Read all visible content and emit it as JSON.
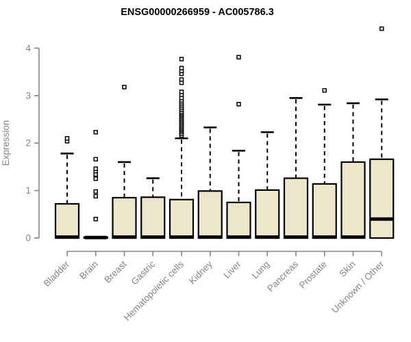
{
  "chart_data": {
    "type": "boxplot",
    "title": "ENSG00000266959 - AC005786.3",
    "ylabel": "Expression",
    "xlabel": "",
    "ylim": [
      0,
      4.45
    ],
    "yticks": [
      0,
      1,
      2,
      3,
      4
    ],
    "grid": false,
    "legend": "none",
    "x_tick_rotation": 45,
    "box_fill_color": "#ece7ca",
    "box_border_color": "#000000",
    "axis_color": "#848484",
    "categories": [
      "Bladder",
      "Brain",
      "Breast",
      "Gastric",
      "Hematopoietic cells",
      "Kidney",
      "Liver",
      "Lung",
      "Pancreas",
      "Prostate",
      "Skin",
      "Unknown / Other"
    ],
    "series": [
      {
        "label": "Bladder",
        "q1": 0,
        "median": 0.02,
        "q3": 0.72,
        "whisker_low": 0,
        "whisker_high": 1.78,
        "outliers": [
          2.04,
          2.1
        ]
      },
      {
        "label": "Brain",
        "q1": 0,
        "median": 0.01,
        "q3": 0.02,
        "whisker_low": 0,
        "whisker_high": 0.02,
        "outliers": [
          0.4,
          0.88,
          0.98,
          1.25,
          1.34,
          1.41,
          1.46,
          1.66,
          2.23
        ]
      },
      {
        "label": "Breast",
        "q1": 0,
        "median": 0.02,
        "q3": 0.85,
        "whisker_low": 0,
        "whisker_high": 1.6,
        "outliers": [
          3.18
        ]
      },
      {
        "label": "Gastric",
        "q1": 0,
        "median": 0.02,
        "q3": 0.86,
        "whisker_low": 0,
        "whisker_high": 1.26,
        "outliers": []
      },
      {
        "label": "Hematopoietic cells",
        "q1": 0,
        "median": 0.02,
        "q3": 0.81,
        "whisker_low": 0,
        "whisker_high": 2.1,
        "outliers": [
          2.16,
          2.2,
          2.24,
          2.27,
          2.3,
          2.33,
          2.36,
          2.39,
          2.42,
          2.45,
          2.48,
          2.51,
          2.54,
          2.57,
          2.6,
          2.63,
          2.66,
          2.7,
          2.74,
          2.78,
          2.82,
          2.86,
          2.9,
          2.95,
          3.02,
          3.08,
          3.27,
          3.34,
          3.46,
          3.52,
          3.58,
          3.77
        ]
      },
      {
        "label": "Kidney",
        "q1": 0,
        "median": 0.02,
        "q3": 0.99,
        "whisker_low": 0,
        "whisker_high": 2.33,
        "outliers": []
      },
      {
        "label": "Liver",
        "q1": 0,
        "median": 0.02,
        "q3": 0.75,
        "whisker_low": 0,
        "whisker_high": 1.84,
        "outliers": [
          2.82,
          3.81
        ]
      },
      {
        "label": "Lung",
        "q1": 0,
        "median": 0.02,
        "q3": 1.01,
        "whisker_low": 0,
        "whisker_high": 2.23,
        "outliers": []
      },
      {
        "label": "Pancreas",
        "q1": 0,
        "median": 0.02,
        "q3": 1.26,
        "whisker_low": 0,
        "whisker_high": 2.95,
        "outliers": []
      },
      {
        "label": "Prostate",
        "q1": 0,
        "median": 0.02,
        "q3": 1.14,
        "whisker_low": 0,
        "whisker_high": 2.81,
        "outliers": [
          3.11
        ]
      },
      {
        "label": "Skin",
        "q1": 0,
        "median": 0.02,
        "q3": 1.6,
        "whisker_low": 0,
        "whisker_high": 2.84,
        "outliers": []
      },
      {
        "label": "Unknown / Other",
        "q1": 0,
        "median": 0.4,
        "q3": 1.66,
        "whisker_low": 0,
        "whisker_high": 2.92,
        "outliers": [
          4.41
        ]
      }
    ]
  }
}
